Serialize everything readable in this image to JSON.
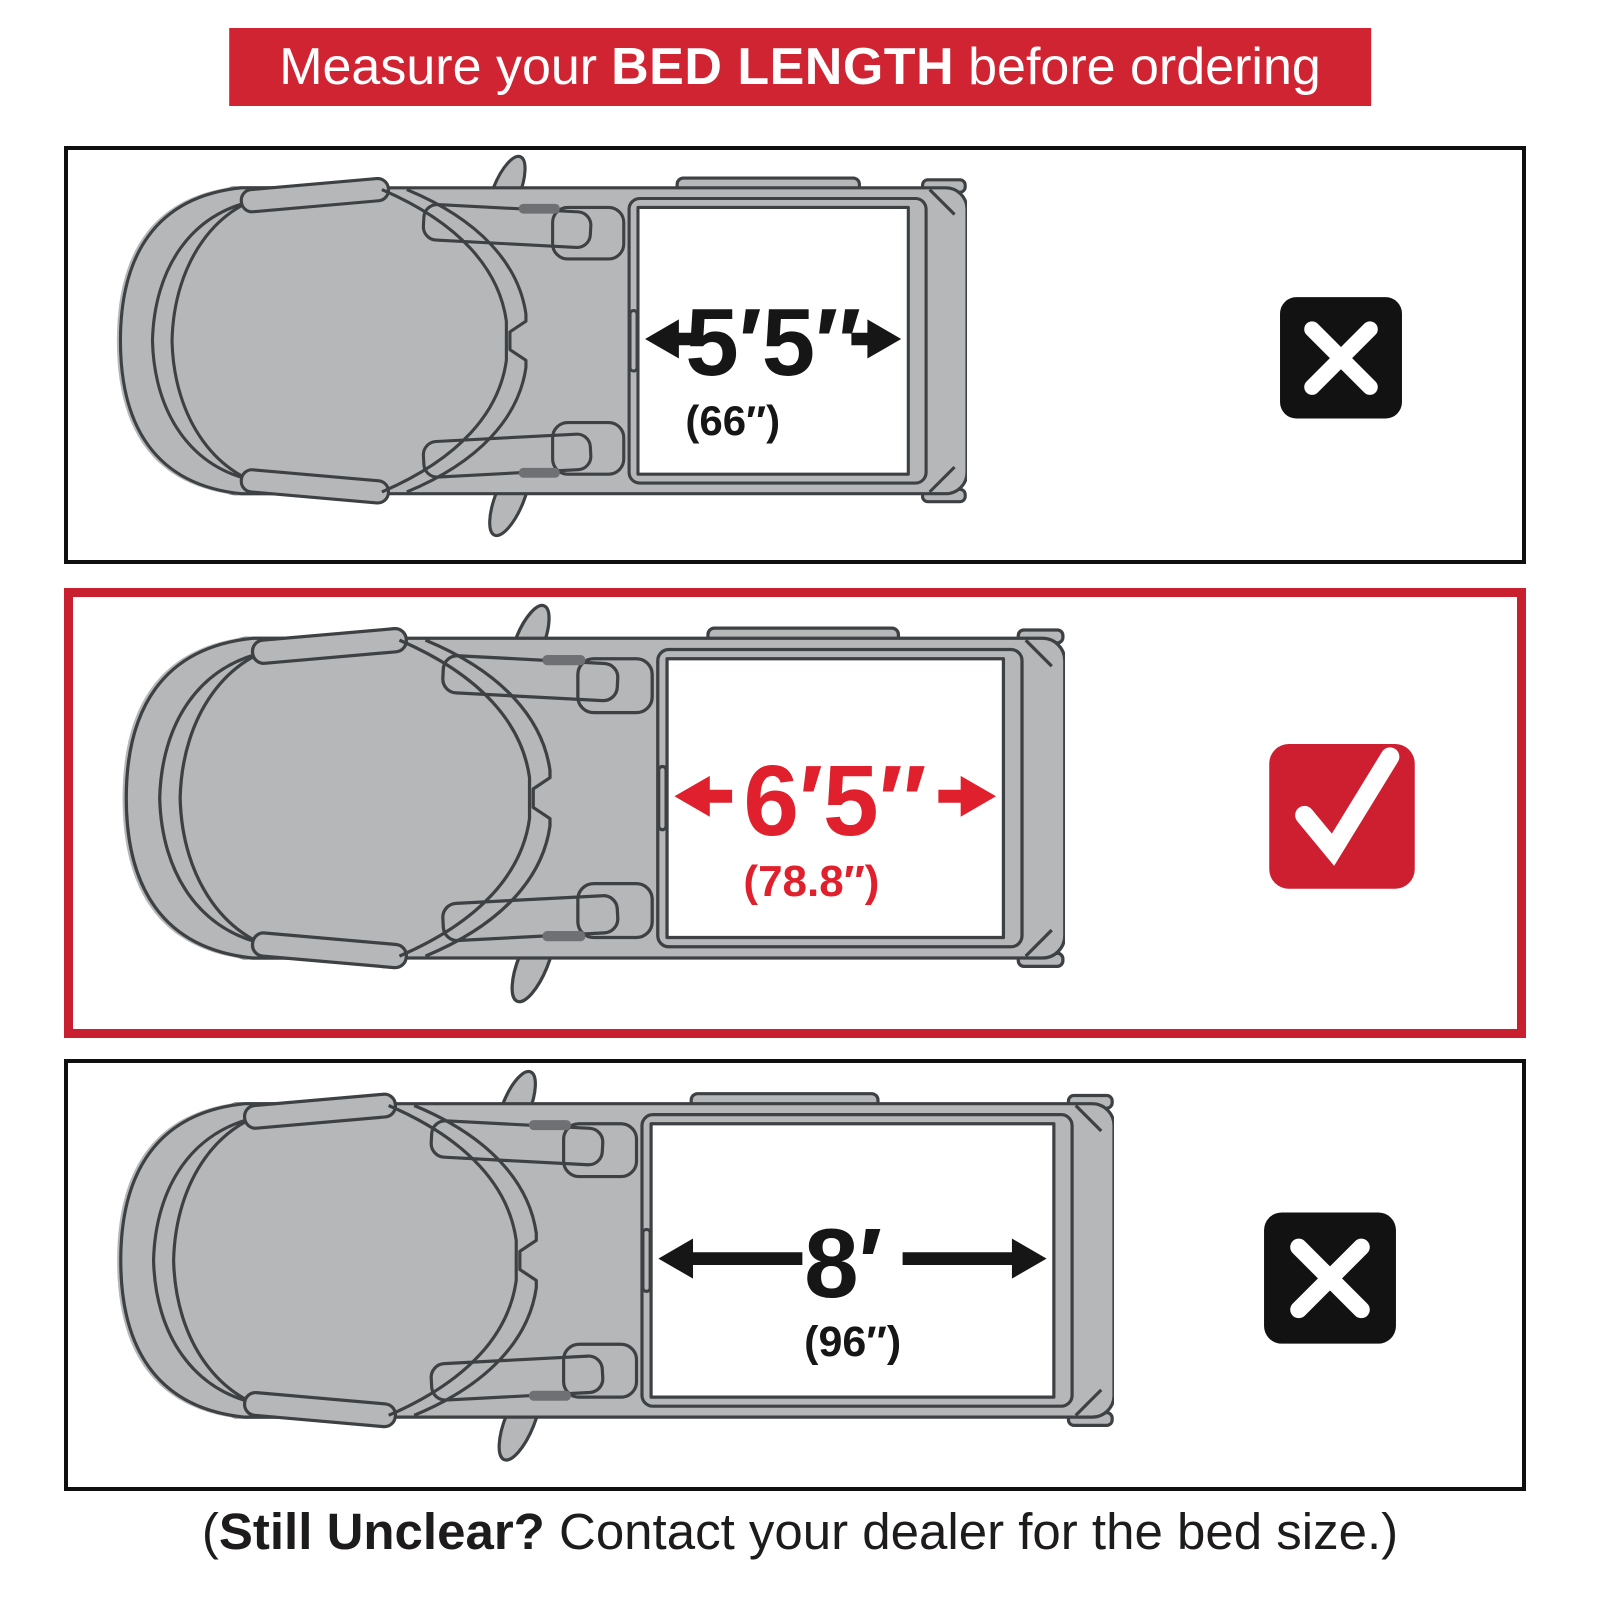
{
  "header": {
    "prefix": "Measure your",
    "highlight": "BED LENGTH",
    "suffix": "before ordering"
  },
  "panels": [
    {
      "name": "bed-5ft5",
      "bed_label": "5′5″",
      "bed_sub": "(66″)",
      "bed_inches": 66,
      "mark": "cross",
      "highlighted": false
    },
    {
      "name": "bed-6ft5",
      "bed_label": "6′5″",
      "bed_sub": "(78.8″)",
      "bed_inches": 78.8,
      "mark": "check",
      "highlighted": true
    },
    {
      "name": "bed-8ft",
      "bed_label": "8′",
      "bed_sub": "(96″)",
      "bed_inches": 96,
      "mark": "cross",
      "highlighted": false
    }
  ],
  "footer": {
    "paren": "(",
    "bold": "Still Unclear?",
    "rest": " Contact your dealer for the bed size.)"
  },
  "colors": {
    "banner_red": "#d02433",
    "panel_highlight_border_red": "#c8202f",
    "accent_red": "#e0202c",
    "check_box_red": "#ce1f30",
    "mark_box_black": "#121212",
    "measure_black": "#161616",
    "truck_gray": "#b5b7b9",
    "truck_outline": "#3e4144",
    "panel_border_black": "#0f0f0f",
    "footer_text": "#1d1b1b"
  }
}
